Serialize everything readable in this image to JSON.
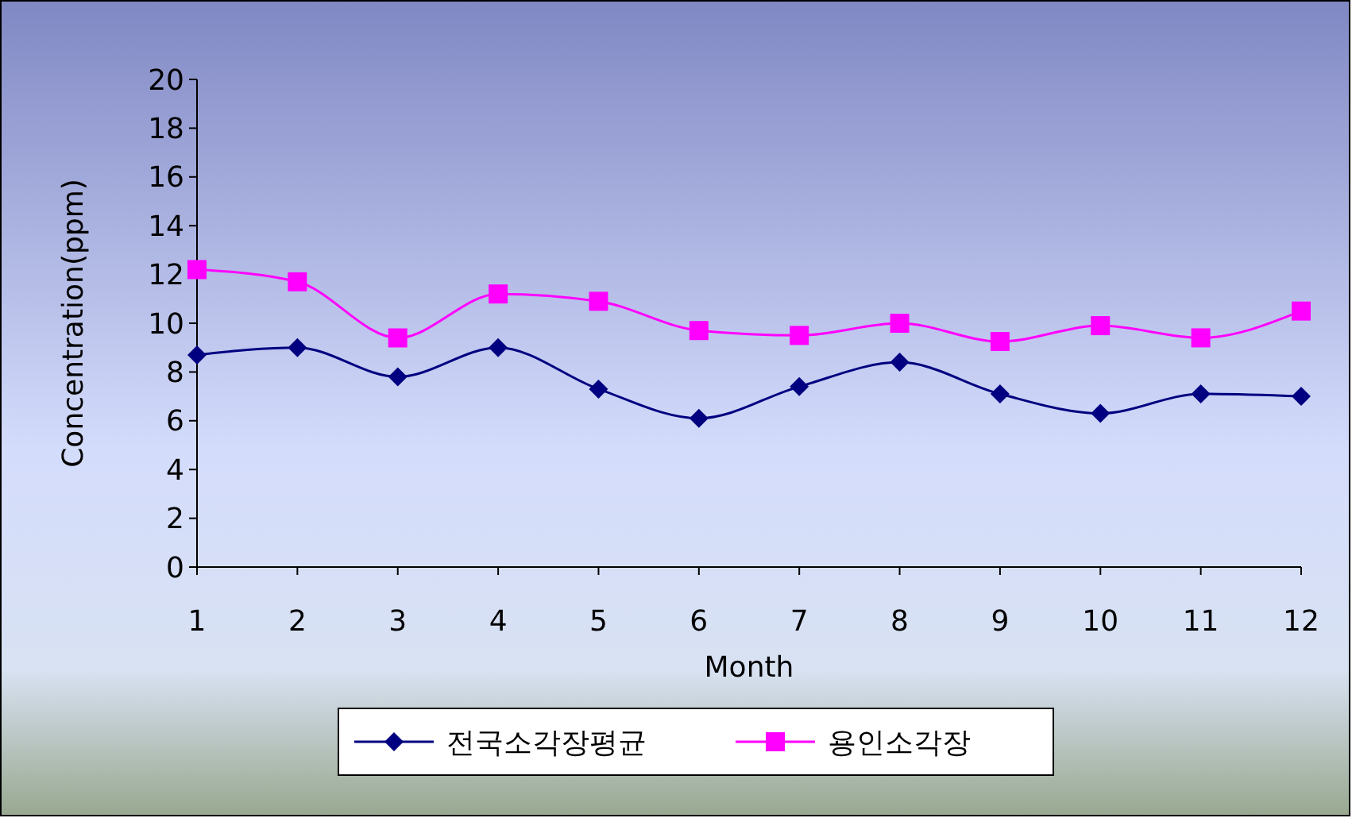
{
  "chart_data": {
    "type": "line",
    "xlabel": "Month",
    "ylabel": "Concentration(ppm)",
    "categories": [
      "1",
      "2",
      "3",
      "4",
      "5",
      "6",
      "7",
      "8",
      "9",
      "10",
      "11",
      "12"
    ],
    "series": [
      {
        "name": "전국소각장평균",
        "color": "#000080",
        "marker": "diamond",
        "values": [
          8.7,
          9.0,
          7.8,
          9.0,
          7.3,
          6.1,
          7.4,
          8.4,
          7.1,
          6.3,
          7.1,
          7.0
        ]
      },
      {
        "name": "용인소각장",
        "color": "#ff00ff",
        "marker": "square",
        "values": [
          12.2,
          11.7,
          9.4,
          11.2,
          10.9,
          9.7,
          9.5,
          10.0,
          9.25,
          9.9,
          9.4,
          10.5
        ]
      }
    ],
    "ylim": [
      0,
      20
    ],
    "yticks": [
      0,
      2,
      4,
      6,
      8,
      10,
      12,
      14,
      16,
      18,
      20
    ],
    "grid": false,
    "legend": "bottom"
  }
}
